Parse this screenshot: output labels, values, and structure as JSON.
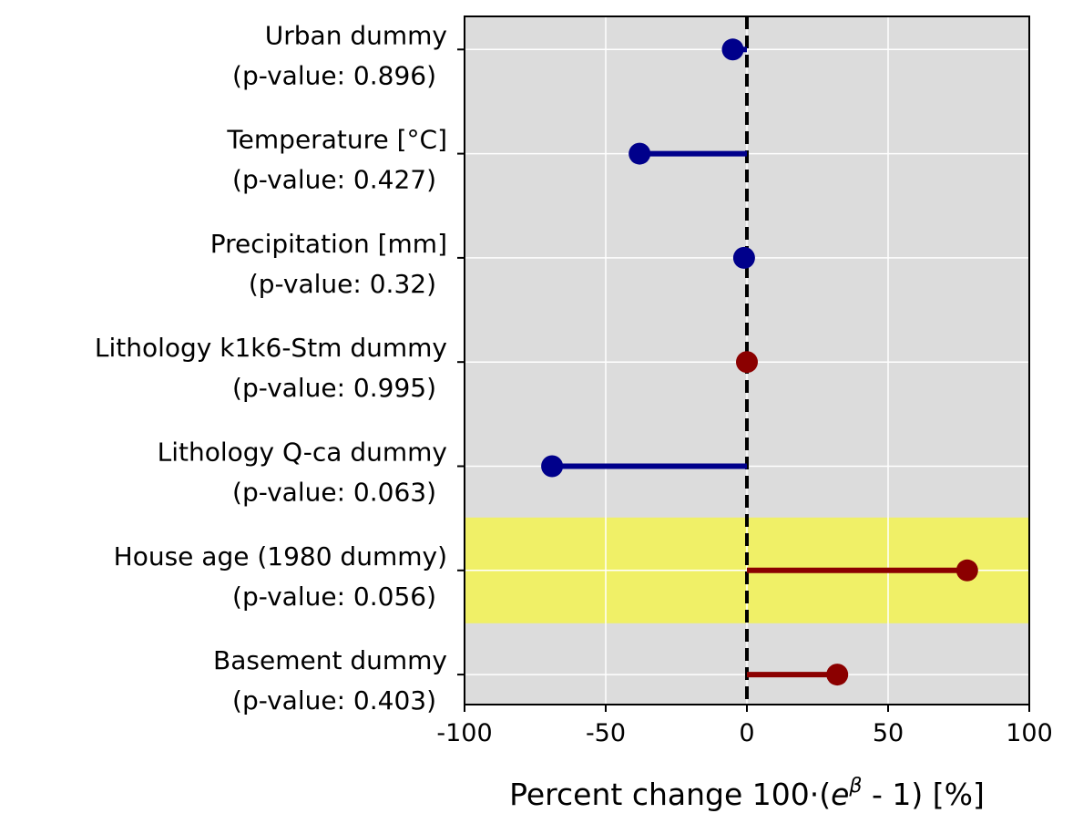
{
  "chart_data": {
    "type": "lollipop",
    "xlabel": {
      "prefix": "Percent change 100·(",
      "base": "e",
      "exponent": "β",
      "suffix": " - 1) [%]"
    },
    "xlim": [
      -100,
      100
    ],
    "xticks": [
      -100,
      -50,
      0,
      50,
      100
    ],
    "xtick_labels": [
      "-100",
      "-50",
      "0",
      "50",
      "100"
    ],
    "grid": true,
    "reference_line": 0,
    "colors": {
      "background": "#dcdcdc",
      "negative": "#00008b",
      "positive": "#8b0000",
      "highlight": "#f2f25a"
    },
    "categories": [
      {
        "label": "Urban dummy",
        "pvalue_label": "(p-value: 0.896)",
        "value": -5
      },
      {
        "label": "Temperature [°C]",
        "pvalue_label": "(p-value: 0.427)",
        "value": -38
      },
      {
        "label": "Precipitation [mm]",
        "pvalue_label": "(p-value: 0.32)",
        "value": -1
      },
      {
        "label": "Lithology k1k6-Stm dummy",
        "pvalue_label": "(p-value: 0.995)",
        "value": 0
      },
      {
        "label": "Lithology Q-ca dummy",
        "pvalue_label": "(p-value: 0.063)",
        "value": -69
      },
      {
        "label": "House age (1980 dummy)",
        "pvalue_label": "(p-value: 0.056)",
        "value": 78,
        "highlight": true
      },
      {
        "label": "Basement dummy",
        "pvalue_label": "(p-value: 0.403)",
        "value": 32
      }
    ]
  }
}
